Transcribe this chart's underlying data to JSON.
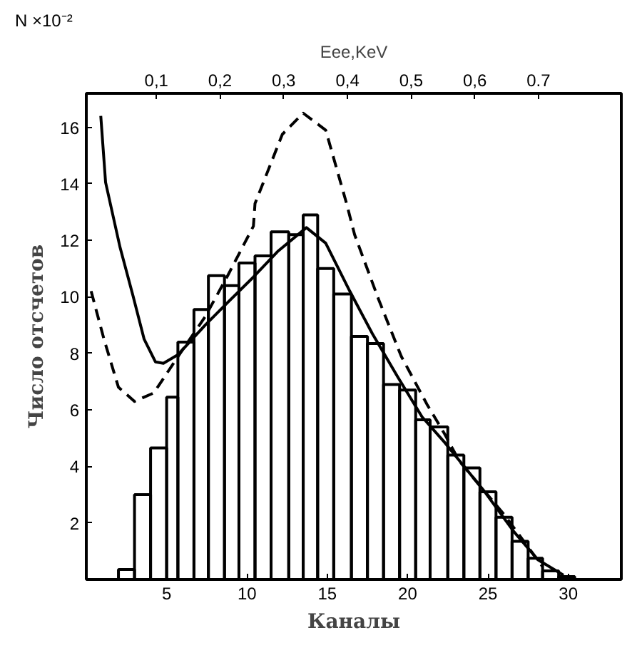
{
  "chart_data": {
    "type": "histogram",
    "xlabel": "Каналы",
    "ylabel": "Число отсчетов",
    "x2label": "Eee,KeV",
    "annotations": [
      "N ×10⁻²"
    ],
    "bins": [
      2,
      3,
      4,
      5,
      5.7,
      6.7,
      7.6,
      8.6,
      9.5,
      10.5,
      11.5,
      12.6,
      13.5,
      14.4,
      15.4,
      16.5,
      17.5,
      18.5,
      19.5,
      20.5,
      21.4,
      22.5,
      23.5,
      24.5,
      25.5,
      26.5,
      27.5,
      28.4,
      29.4,
      30.4
    ],
    "values": [
      0.35,
      3.0,
      4.65,
      6.45,
      8.4,
      9.55,
      10.75,
      10.4,
      11.2,
      11.45,
      12.3,
      12.2,
      12.9,
      11.0,
      10.1,
      8.6,
      8.35,
      6.9,
      6.7,
      5.65,
      5.4,
      4.4,
      3.95,
      3.1,
      2.2,
      1.35,
      0.75,
      0.3,
      0.1
    ],
    "color": "#000000",
    "series": [
      {
        "type": "line",
        "color": "#000000",
        "line_style": "solid",
        "x": [
          0.9,
          1.2,
          2.1,
          2.9,
          3.6,
          4.3,
          4.8,
          5.7,
          7.4,
          8.8,
          10.4,
          11.9,
          13.7,
          14.9,
          16.4,
          17.8,
          19.4,
          20.9,
          22.3,
          24.8,
          26.6,
          28.1,
          29.7
        ],
        "values": [
          16.4,
          14.05,
          11.75,
          10.05,
          8.5,
          7.7,
          7.65,
          7.95,
          9.0,
          9.8,
          10.7,
          11.6,
          12.45,
          11.9,
          10.2,
          8.7,
          7.15,
          5.75,
          4.85,
          3.1,
          1.7,
          0.7,
          0.15
        ]
      },
      {
        "type": "line",
        "color": "#000000",
        "line_style": "dashed",
        "x": [
          0.3,
          1.1,
          2.0,
          3.0,
          4.2,
          5.9,
          7.4,
          8.8,
          10.4,
          10.5,
          12.2,
          13.5,
          14.9,
          16.2,
          16.7,
          18.2,
          19.6,
          21.2,
          22.3,
          23.2,
          26.0,
          28.4
        ],
        "values": [
          10.2,
          8.5,
          6.8,
          6.3,
          6.6,
          8.05,
          9.3,
          10.75,
          12.5,
          13.3,
          15.75,
          16.5,
          15.9,
          13.3,
          12.2,
          9.9,
          7.9,
          6.2,
          5.15,
          4.2,
          2.3,
          0.45
        ]
      }
    ],
    "xlim": [
      0,
      33.3
    ],
    "ylim": [
      0,
      17.2
    ],
    "xticks": [
      5,
      10,
      15,
      20,
      25,
      30
    ],
    "yticks": [
      2,
      4,
      6,
      8,
      10,
      12,
      14,
      16
    ],
    "x2lim": [
      -0.01,
      0.83
    ],
    "x2ticks": [
      {
        "value": 0.1,
        "label": "0,1"
      },
      {
        "value": 0.2,
        "label": "0,2"
      },
      {
        "value": 0.3,
        "label": "0,3"
      },
      {
        "value": 0.4,
        "label": "0,4"
      },
      {
        "value": 0.5,
        "label": "0,5"
      },
      {
        "value": 0.6,
        "label": "0,6"
      },
      {
        "value": 0.7,
        "label": "0.7"
      }
    ],
    "grid": false
  }
}
